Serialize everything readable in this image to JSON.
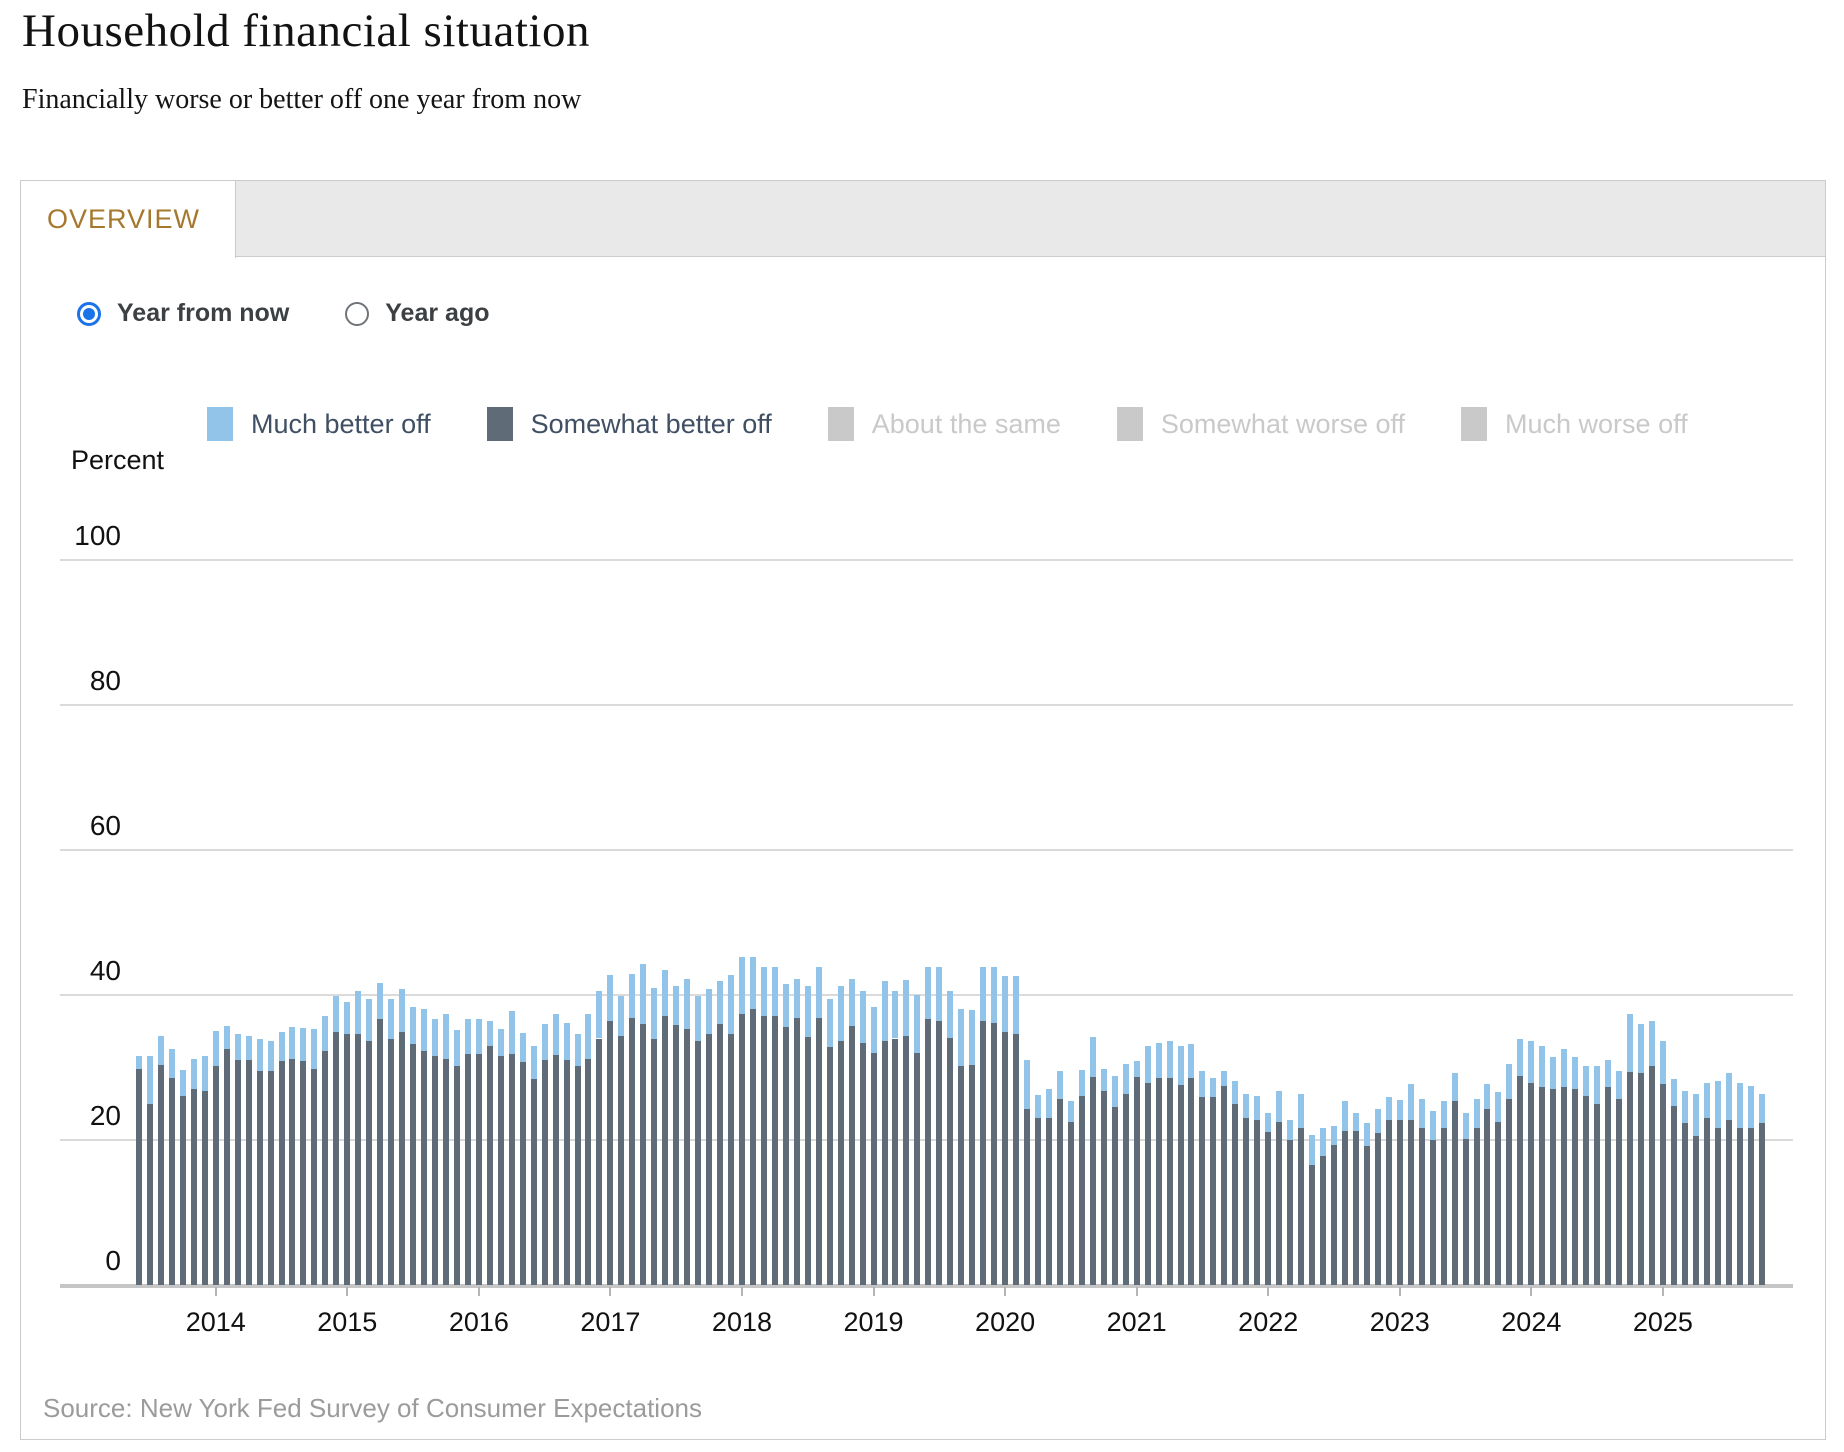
{
  "page": {
    "title": "Household financial situation",
    "subtitle": "Financially worse or better off one year from now"
  },
  "tabs": {
    "overview_label": "OVERVIEW"
  },
  "controls": {
    "radios": [
      {
        "label": "Year from now",
        "selected": true
      },
      {
        "label": "Year ago",
        "selected": false
      }
    ]
  },
  "legend": {
    "items": [
      {
        "label": "Much better off",
        "color": "#92c4e9",
        "active": true
      },
      {
        "label": "Somewhat better off",
        "color": "#5f6b76",
        "active": true
      },
      {
        "label": "About the same",
        "color": "#c9c9c9",
        "active": false
      },
      {
        "label": "Somewhat worse off",
        "color": "#c9c9c9",
        "active": false
      },
      {
        "label": "Much worse off",
        "color": "#c9c9c9",
        "active": false
      }
    ]
  },
  "chart_data": {
    "type": "bar",
    "stacked": true,
    "title": "Household financial situation",
    "ylabel": "Percent",
    "ylim": [
      0,
      100
    ],
    "yticks": [
      0,
      20,
      40,
      60,
      80,
      100
    ],
    "grid": true,
    "legend_position": "top",
    "x_start_month": "2013-06",
    "x_end_month": "2025-10",
    "x_tick_labels": [
      "2014",
      "2015",
      "2016",
      "2017",
      "2018",
      "2019",
      "2020",
      "2021",
      "2022",
      "2023",
      "2024",
      "2025"
    ],
    "series": [
      {
        "name": "Somewhat better off",
        "color": "#5f6b76",
        "values": [
          29.8,
          24.9,
          30.3,
          28.5,
          26.1,
          27.1,
          26.8,
          30.2,
          32.6,
          31.0,
          31.0,
          29.5,
          29.5,
          30.9,
          31.2,
          30.9,
          29.8,
          32.3,
          34.9,
          34.6,
          34.6,
          33.6,
          36.7,
          34.0,
          34.9,
          33.3,
          32.3,
          31.6,
          31.2,
          30.2,
          31.9,
          31.9,
          32.9,
          31.6,
          31.9,
          30.7,
          28.4,
          31.1,
          31.7,
          31.1,
          30.2,
          31.2,
          34.0,
          36.4,
          34.4,
          36.8,
          36.0,
          34.0,
          37.1,
          35.9,
          35.3,
          33.7,
          34.6,
          36.0,
          34.6,
          37.4,
          38.1,
          37.1,
          37.1,
          35.6,
          36.8,
          34.2,
          36.8,
          32.8,
          33.6,
          35.7,
          33.4,
          32.0,
          33.6,
          34.0,
          34.3,
          32.0,
          36.7,
          36.4,
          34.1,
          30.2,
          30.3,
          36.4,
          36.1,
          34.9,
          34.6,
          24.3,
          23.0,
          23.0,
          25.7,
          22.5,
          26.1,
          28.7,
          26.8,
          24.5,
          26.4,
          28.7,
          27.9,
          28.5,
          28.5,
          27.6,
          28.5,
          25.9,
          25.9,
          27.5,
          25.0,
          23.1,
          22.7,
          21.1,
          22.5,
          20.0,
          21.7,
          16.5,
          17.8,
          19.3,
          21.3,
          21.3,
          19.2,
          20.9,
          22.7,
          22.7,
          22.7,
          21.6,
          20.0,
          21.6,
          25.4,
          20.1,
          21.6,
          24.3,
          22.5,
          25.6,
          28.8,
          27.8,
          27.3,
          27.1,
          27.3,
          27.0,
          26.1,
          24.9,
          27.3,
          25.7,
          29.4,
          29.2,
          30.2,
          27.7,
          24.7,
          22.3,
          20.6,
          23.0,
          21.6,
          22.7,
          21.6,
          21.6,
          22.3
        ]
      },
      {
        "name": "Much better off",
        "color": "#92c4e9",
        "values": [
          1.8,
          6.7,
          4.0,
          4.0,
          3.6,
          4.1,
          4.8,
          4.8,
          3.1,
          3.6,
          3.3,
          4.5,
          4.1,
          4.0,
          4.4,
          4.5,
          5.5,
          4.8,
          4.9,
          4.5,
          5.9,
          5.9,
          5.0,
          5.5,
          5.9,
          5.1,
          5.8,
          5.1,
          6.2,
          5.0,
          4.8,
          4.8,
          3.5,
          3.7,
          5.9,
          4.1,
          4.5,
          4.9,
          5.7,
          5.0,
          4.4,
          6.2,
          6.6,
          6.3,
          5.4,
          6.1,
          8.3,
          7.0,
          6.4,
          5.4,
          6.9,
          6.2,
          6.2,
          5.9,
          8.2,
          7.9,
          7.2,
          6.7,
          6.8,
          5.9,
          5.4,
          7.0,
          7.1,
          6.6,
          7.7,
          6.5,
          7.1,
          6.4,
          8.3,
          6.6,
          7.8,
          8.0,
          7.2,
          7.5,
          6.4,
          7.9,
          7.7,
          7.5,
          7.8,
          7.7,
          8.0,
          6.8,
          3.2,
          4.1,
          3.8,
          2.9,
          3.6,
          5.5,
          3.0,
          4.3,
          4.1,
          2.2,
          5.0,
          4.9,
          5.2,
          5.3,
          4.7,
          3.6,
          2.6,
          2.0,
          3.1,
          3.2,
          3.4,
          2.6,
          4.3,
          2.7,
          4.6,
          4.2,
          3.9,
          2.7,
          4.1,
          2.4,
          3.1,
          3.4,
          3.2,
          2.8,
          5.0,
          4.1,
          4.0,
          3.8,
          3.8,
          3.6,
          4.1,
          3.4,
          4.1,
          4.9,
          5.1,
          5.8,
          5.6,
          4.4,
          5.2,
          4.5,
          4.1,
          5.3,
          3.8,
          3.8,
          8.0,
          6.8,
          6.2,
          5.9,
          3.7,
          4.5,
          5.8,
          4.8,
          6.5,
          6.5,
          6.2,
          5.9,
          4.1
        ]
      }
    ]
  },
  "footer": {
    "source": "Source: New York Fed Survey of Consumer Expectations"
  }
}
